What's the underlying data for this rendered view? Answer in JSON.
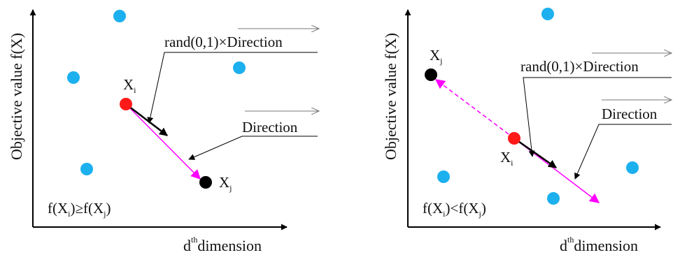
{
  "panels": [
    {
      "name": "left",
      "y_axis_label": "Objective value f(X)",
      "x_axis_label_main": "d",
      "x_axis_label_sup": "th",
      "x_axis_label_rest": "dimension",
      "xi_main": "X",
      "xi_sub": "i",
      "xj_main": "X",
      "xj_sub": "j",
      "rand_direction_prefix": "rand(0,1)×",
      "rand_direction_word": "Direction",
      "direction_label": "Direction",
      "condition": {
        "p1": "f(X",
        "s1": "i",
        "p2": ")≥f(X",
        "s2": "j",
        "p3": ")"
      }
    },
    {
      "name": "right",
      "y_axis_label": "Objective value f(X)",
      "x_axis_label_main": "d",
      "x_axis_label_sup": "th",
      "x_axis_label_rest": "dimension",
      "xi_main": "X",
      "xi_sub": "i",
      "xj_main": "X",
      "xj_sub": "j",
      "rand_direction_prefix": "rand(0,1)×",
      "rand_direction_word": "Direction",
      "direction_label": "Direction",
      "condition": {
        "p1": "f(X",
        "s1": "i",
        "p2": ")<f(X",
        "s2": "j",
        "p3": ")"
      }
    }
  ],
  "colors": {
    "population_dot": "#1cb0ef",
    "xi_dot": "#ff1a1a",
    "xj_dot": "#000000",
    "direction_arrow": "#ff00ff",
    "step_arrow": "#000000",
    "axis": "#000000"
  }
}
